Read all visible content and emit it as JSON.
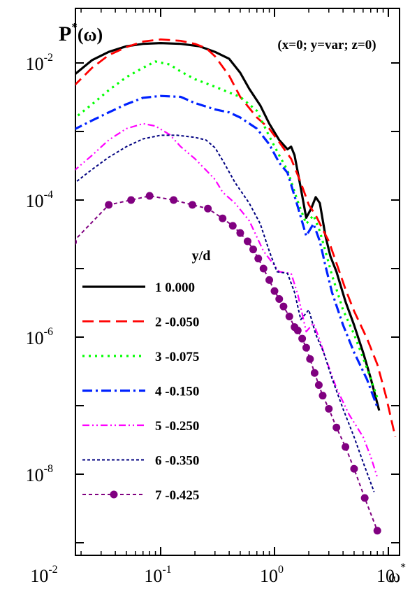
{
  "chart_data": {
    "type": "line",
    "title": "P*(ω)",
    "title_main": "P",
    "title_sup": "*",
    "title_arg": "(ω)",
    "annotation": "(x=0; y=var; z=0)",
    "xlabel": "ω*",
    "xlabel_main": "ω",
    "xlabel_sup": "*",
    "x_scale": "log",
    "y_scale": "log",
    "xlim": [
      0.01,
      10
    ],
    "ylim": [
      5e-10,
      0.07
    ],
    "x_ticks": [
      {
        "value": 0.01,
        "base": "10",
        "exp": "-2"
      },
      {
        "value": 0.1,
        "base": "10",
        "exp": "-1"
      },
      {
        "value": 1,
        "base": "10",
        "exp": "0"
      },
      {
        "value": 10,
        "base": "10",
        "exp": ""
      }
    ],
    "y_ticks": [
      {
        "value": 0.01,
        "base": "10",
        "exp": "-2"
      },
      {
        "value": 0.0001,
        "base": "10",
        "exp": "-4"
      },
      {
        "value": 1e-06,
        "base": "10",
        "exp": "-6"
      },
      {
        "value": 1e-08,
        "base": "10",
        "exp": "-8"
      }
    ],
    "legend": {
      "title": "y/d",
      "position": "lower-left"
    },
    "series": [
      {
        "name": "1   0.000",
        "color": "#000000",
        "style": "solid",
        "width": 3.2,
        "marker": false,
        "points": [
          [
            0.017,
            0.0065
          ],
          [
            0.025,
            0.011
          ],
          [
            0.035,
            0.0145
          ],
          [
            0.05,
            0.0175
          ],
          [
            0.07,
            0.019
          ],
          [
            0.1,
            0.0195
          ],
          [
            0.15,
            0.019
          ],
          [
            0.22,
            0.0175
          ],
          [
            0.3,
            0.0145
          ],
          [
            0.4,
            0.0115
          ],
          [
            0.5,
            0.0072
          ],
          [
            0.6,
            0.0042
          ],
          [
            0.75,
            0.0024
          ],
          [
            0.9,
            0.0013
          ],
          [
            1.1,
            0.00075
          ],
          [
            1.3,
            0.00055
          ],
          [
            1.4,
            0.0006
          ],
          [
            1.5,
            0.00045
          ],
          [
            1.7,
            0.00015
          ],
          [
            1.9,
            5.5e-05
          ],
          [
            2.1,
            7.5e-05
          ],
          [
            2.3,
            0.00011
          ],
          [
            2.5,
            9e-05
          ],
          [
            2.8,
            3e-05
          ],
          [
            3.1,
            1.5e-05
          ],
          [
            3.5,
            9e-06
          ],
          [
            4.2,
            3.3e-06
          ],
          [
            5,
            1.5e-06
          ],
          [
            6,
            6e-07
          ],
          [
            7,
            2.5e-07
          ],
          [
            8.3,
            8.5e-08
          ]
        ]
      },
      {
        "name": "2  -0.050",
        "color": "#ff0000",
        "style": "dash",
        "width": 2.8,
        "marker": false,
        "points": [
          [
            0.017,
            0.0045
          ],
          [
            0.025,
            0.0085
          ],
          [
            0.035,
            0.013
          ],
          [
            0.05,
            0.017
          ],
          [
            0.07,
            0.0205
          ],
          [
            0.1,
            0.022
          ],
          [
            0.15,
            0.021
          ],
          [
            0.2,
            0.019
          ],
          [
            0.25,
            0.0165
          ],
          [
            0.3,
            0.0125
          ],
          [
            0.4,
            0.0065
          ],
          [
            0.5,
            0.0032
          ],
          [
            0.7,
            0.0016
          ],
          [
            0.9,
            0.0011
          ],
          [
            1.1,
            0.0007
          ],
          [
            1.4,
            0.0004
          ],
          [
            1.7,
            0.00018
          ],
          [
            2,
            8.5e-05
          ],
          [
            2.3,
            6e-05
          ],
          [
            2.7,
            3.5e-05
          ],
          [
            3,
            2.5e-05
          ],
          [
            3.5,
            1.2e-05
          ],
          [
            4.2,
            5e-06
          ],
          [
            5,
            2.4e-06
          ],
          [
            6.5,
            9.5e-07
          ],
          [
            8,
            4e-07
          ],
          [
            9.5,
            1.4e-07
          ],
          [
            11.5,
            3.5e-08
          ]
        ]
      },
      {
        "name": "3  -0.075",
        "color": "#00ff00",
        "style": "dot",
        "width": 3.2,
        "marker": false,
        "points": [
          [
            0.017,
            0.0015
          ],
          [
            0.025,
            0.0025
          ],
          [
            0.035,
            0.004
          ],
          [
            0.05,
            0.0062
          ],
          [
            0.07,
            0.0085
          ],
          [
            0.09,
            0.0105
          ],
          [
            0.12,
            0.0095
          ],
          [
            0.15,
            0.0075
          ],
          [
            0.2,
            0.0058
          ],
          [
            0.3,
            0.0045
          ],
          [
            0.4,
            0.0037
          ],
          [
            0.5,
            0.0032
          ],
          [
            0.7,
            0.002
          ],
          [
            0.9,
            0.00085
          ],
          [
            1.1,
            0.00045
          ],
          [
            1.3,
            0.00027
          ],
          [
            1.6,
            9.5e-05
          ],
          [
            1.9,
            4.5e-05
          ],
          [
            2.2,
            6e-05
          ],
          [
            2.5,
            3.5e-05
          ],
          [
            2.8,
            1.8e-05
          ],
          [
            3.2,
            8e-06
          ],
          [
            4,
            2.5e-06
          ],
          [
            5,
            1.1e-06
          ],
          [
            6.5,
            3.5e-07
          ],
          [
            8,
            1.3e-07
          ]
        ]
      },
      {
        "name": "4  -0.150",
        "color": "#0022ff",
        "style": "dashdot",
        "width": 3.2,
        "marker": false,
        "points": [
          [
            0.017,
            0.00105
          ],
          [
            0.025,
            0.00145
          ],
          [
            0.035,
            0.0019
          ],
          [
            0.05,
            0.0025
          ],
          [
            0.07,
            0.0031
          ],
          [
            0.1,
            0.0033
          ],
          [
            0.15,
            0.0032
          ],
          [
            0.2,
            0.0026
          ],
          [
            0.3,
            0.0021
          ],
          [
            0.4,
            0.0019
          ],
          [
            0.5,
            0.0016
          ],
          [
            0.7,
            0.0011
          ],
          [
            0.9,
            0.00065
          ],
          [
            1.1,
            0.00035
          ],
          [
            1.3,
            0.00025
          ],
          [
            1.6,
            8e-05
          ],
          [
            1.9,
            3e-05
          ],
          [
            2.2,
            4.5e-05
          ],
          [
            2.5,
            2.5e-05
          ],
          [
            2.8,
            1.1e-05
          ],
          [
            3.2,
            4.5e-06
          ],
          [
            4,
            1.5e-06
          ],
          [
            5,
            6e-07
          ],
          [
            6.5,
            2.4e-07
          ],
          [
            8,
            9.5e-08
          ]
        ]
      },
      {
        "name": "5  -0.250",
        "color": "#ff00ff",
        "style": "dashdotdot",
        "width": 2.2,
        "marker": false,
        "points": [
          [
            0.017,
            0.00026
          ],
          [
            0.025,
            0.00045
          ],
          [
            0.035,
            0.00075
          ],
          [
            0.05,
            0.0011
          ],
          [
            0.07,
            0.0013
          ],
          [
            0.09,
            0.0012
          ],
          [
            0.12,
            0.0009
          ],
          [
            0.15,
            0.0006
          ],
          [
            0.2,
            0.0004
          ],
          [
            0.3,
            0.0002
          ],
          [
            0.35,
            0.00013
          ],
          [
            0.45,
            9e-05
          ],
          [
            0.6,
            5e-05
          ],
          [
            0.8,
            1.8e-05
          ],
          [
            1.1,
            9e-06
          ],
          [
            1.4,
            8.5e-06
          ],
          [
            1.6,
            4.2e-06
          ],
          [
            1.9,
            1.2e-06
          ],
          [
            2.2,
            1.6e-06
          ],
          [
            2.5,
            9e-07
          ],
          [
            2.8,
            5e-07
          ],
          [
            3.5,
            1.8e-07
          ],
          [
            4.5,
            7.5e-08
          ],
          [
            6,
            3.5e-08
          ],
          [
            7,
            1.8e-08
          ],
          [
            8,
            9e-09
          ]
        ]
      },
      {
        "name": "6  -0.350",
        "color": "#000080",
        "style": "shortdash",
        "width": 2.0,
        "marker": false,
        "points": [
          [
            0.017,
            0.00017
          ],
          [
            0.025,
            0.00028
          ],
          [
            0.035,
            0.00042
          ],
          [
            0.05,
            0.0006
          ],
          [
            0.07,
            0.00078
          ],
          [
            0.1,
            0.00088
          ],
          [
            0.14,
            0.00088
          ],
          [
            0.2,
            0.00082
          ],
          [
            0.25,
            0.00075
          ],
          [
            0.3,
            0.00058
          ],
          [
            0.35,
            0.00038
          ],
          [
            0.45,
            0.00018
          ],
          [
            0.6,
            9e-05
          ],
          [
            0.75,
            4.5e-05
          ],
          [
            0.9,
            1.8e-05
          ],
          [
            1.05,
            9e-06
          ],
          [
            1.3,
            8.5e-06
          ],
          [
            1.5,
            4.5e-06
          ],
          [
            1.7,
            1.8e-06
          ],
          [
            2,
            2.5e-06
          ],
          [
            2.3,
            1.1e-06
          ],
          [
            2.7,
            6e-07
          ],
          [
            3.2,
            2.5e-07
          ],
          [
            4,
            9e-08
          ],
          [
            5,
            3.5e-08
          ],
          [
            6,
            1.5e-08
          ],
          [
            7.5,
            5.5e-09
          ]
        ]
      },
      {
        "name": "7  -0.425",
        "color": "#800080",
        "style": "dash-marker",
        "width": 2.0,
        "marker": true,
        "points": [
          [
            0.017,
            2.45e-05
          ],
          [
            0.035,
            8.5e-05
          ],
          [
            0.055,
            0.0001
          ],
          [
            0.08,
            0.000115
          ],
          [
            0.13,
            0.0001
          ],
          [
            0.19,
            8.5e-05
          ],
          [
            0.26,
            7.5e-05
          ],
          [
            0.35,
            5.4e-05
          ],
          [
            0.43,
            4.2e-05
          ],
          [
            0.5,
            3.3e-05
          ],
          [
            0.58,
            2.5e-05
          ],
          [
            0.65,
            1.9e-05
          ],
          [
            0.72,
            1.4e-05
          ],
          [
            0.8,
            1e-05
          ],
          [
            0.9,
            6.8e-06
          ],
          [
            1,
            4.7e-06
          ],
          [
            1.1,
            3.6e-06
          ],
          [
            1.2,
            2.8e-06
          ],
          [
            1.35,
            2e-06
          ],
          [
            1.5,
            1.4e-06
          ],
          [
            1.6,
            1.25e-06
          ],
          [
            1.75,
            9.5e-07
          ],
          [
            1.9,
            7e-07
          ],
          [
            2.05,
            4.8e-07
          ],
          [
            2.25,
            3e-07
          ],
          [
            2.45,
            2e-07
          ],
          [
            2.65,
            1.4e-07
          ],
          [
            3,
            9e-08
          ],
          [
            3.5,
            4.8e-08
          ],
          [
            4.2,
            2.5e-08
          ],
          [
            5,
            1.2e-08
          ],
          [
            6.2,
            4.5e-09
          ],
          [
            8,
            1.5e-09
          ]
        ]
      }
    ]
  }
}
